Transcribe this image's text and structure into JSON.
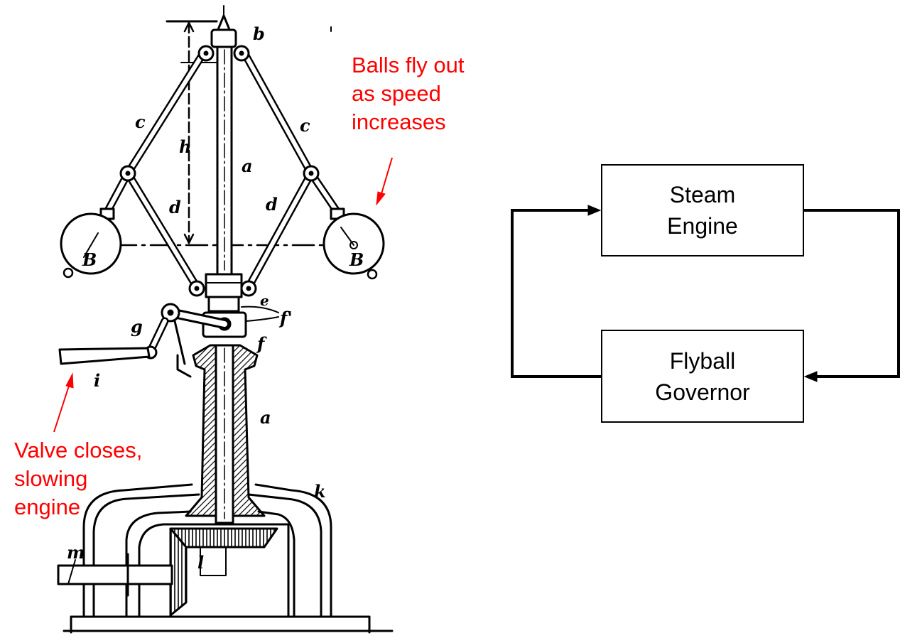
{
  "annotations": {
    "balls": "Balls fly out\nas speed\nincreases",
    "valve": "Valve closes,\nslowing\nengine"
  },
  "blocks": {
    "engine": "Steam\nEngine",
    "governor": "Flyball\nGovernor"
  },
  "labels": {
    "b": "b",
    "c_left": "c",
    "c_right": "c",
    "h": "h",
    "a_upper": "a",
    "d_left": "d",
    "d_right": "d",
    "B_left": "B",
    "B_right": "B",
    "e": "e",
    "f_prime": "f'",
    "f": "f",
    "g": "g",
    "i": "i",
    "a_lower": "a",
    "k": "k",
    "m": "m",
    "l": "l"
  },
  "colors": {
    "annotation": "#ff0000",
    "line": "#000000"
  }
}
